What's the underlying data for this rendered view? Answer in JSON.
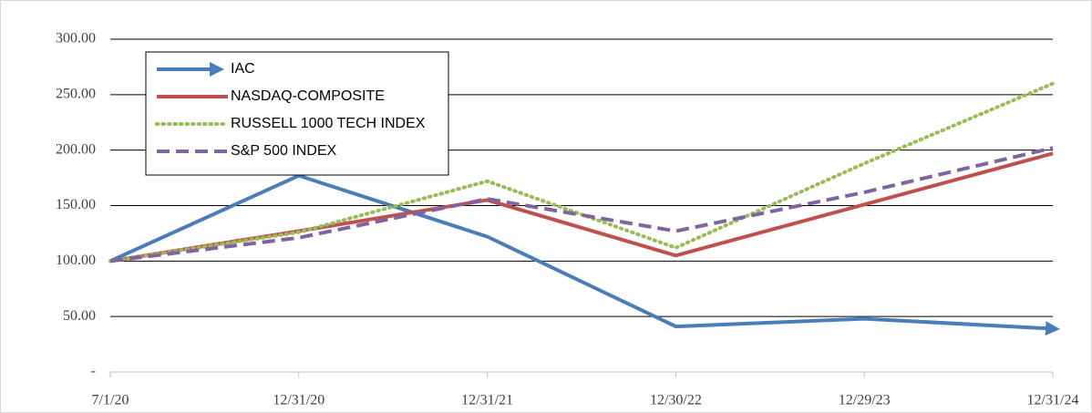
{
  "chart_data": {
    "type": "line",
    "categories": [
      "7/1/20",
      "12/31/20",
      "12/31/21",
      "12/30/22",
      "12/29/23",
      "12/31/24"
    ],
    "series": [
      {
        "name": "IAC",
        "color": "#4a7ebb",
        "line_style": "solid",
        "end_marker": "arrow",
        "values": [
          100,
          177,
          122,
          41,
          48,
          39
        ]
      },
      {
        "name": "NASDAQ-COMPOSITE",
        "color": "#c0504d",
        "line_style": "solid",
        "values": [
          100,
          127,
          155,
          105,
          151,
          197
        ]
      },
      {
        "name": "RUSSELL 1000 TECH INDEX",
        "color": "#9bbb59",
        "line_style": "dotted",
        "values": [
          100,
          126,
          172,
          112,
          188,
          260
        ]
      },
      {
        "name": "S&P 500 INDEX",
        "color": "#8064a2",
        "line_style": "dashed",
        "values": [
          100,
          121,
          156,
          127,
          162,
          202
        ]
      }
    ],
    "ylim": [
      0,
      300
    ],
    "yticks": [
      {
        "value": 0,
        "label": "-"
      },
      {
        "value": 50,
        "label": "50.00"
      },
      {
        "value": 100,
        "label": "100.00"
      },
      {
        "value": 150,
        "label": "150.00"
      },
      {
        "value": 200,
        "label": "200.00"
      },
      {
        "value": 250,
        "label": "250.00"
      },
      {
        "value": 300,
        "label": "300.00"
      }
    ],
    "grid": true,
    "legend": "top-left"
  }
}
